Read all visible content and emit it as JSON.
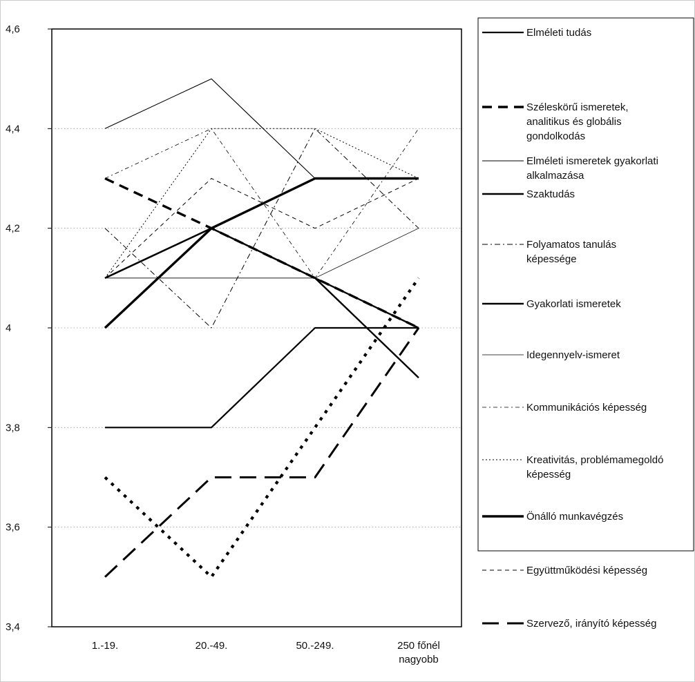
{
  "chart_data": {
    "type": "line",
    "categories": [
      "1.-19.",
      "20.-49.",
      "50.-249.",
      "250 főnél nagyobb"
    ],
    "category_label_lines": [
      [
        "1.-19."
      ],
      [
        "20.-49."
      ],
      [
        "50.-249."
      ],
      [
        "250 főnél",
        "nagyobb"
      ]
    ],
    "y_tick_labels": [
      "3,4",
      "3,6",
      "3,8",
      "4",
      "4,2",
      "4,4",
      "4,6"
    ],
    "ylim": [
      3.4,
      4.6
    ],
    "y_ticks": [
      3.4,
      3.6,
      3.8,
      4.0,
      4.2,
      4.4,
      4.6
    ],
    "grid": "horizontal dotted",
    "legend_position": "right",
    "title": "",
    "xlabel": "",
    "ylabel": "",
    "series": [
      {
        "name": "Elméleti tudás",
        "name_lines": [
          "Elméleti tudás"
        ],
        "values": [
          3.8,
          3.8,
          4.0,
          4.0
        ],
        "color": "#000000",
        "stroke": "solid-medium"
      },
      {
        "name": "Széleskörű ismeretek, analitikus és globális gondolkodás",
        "name_lines": [
          "Széleskörű ismeretek,",
          "analitikus és globális",
          "gondolkodás"
        ],
        "values": [
          4.3,
          4.2,
          4.1,
          4.0
        ],
        "color": "#000000",
        "stroke": "dash-thick"
      },
      {
        "name": "Elméleti ismeretek gyakorlati alkalmazása",
        "name_lines": [
          "Elméleti ismeretek gyakorlati",
          "alkalmazása"
        ],
        "values": [
          4.4,
          4.5,
          4.3,
          4.3
        ],
        "color": "#000000",
        "stroke": "solid-thin"
      },
      {
        "name": "Szaktudás",
        "name_lines": [
          "Szaktudás"
        ],
        "values": [
          4.1,
          4.2,
          4.1,
          3.9
        ],
        "color": "#000000",
        "stroke": "solid-semibold"
      },
      {
        "name": "Folyamatos tanulás képessége",
        "name_lines": [
          "Folyamatos tanulás",
          "képessége"
        ],
        "values": [
          4.2,
          4.0,
          4.4,
          4.2
        ],
        "color": "#000000",
        "stroke": "dashdot-thin"
      },
      {
        "name": "Gyakorlati ismeretek",
        "name_lines": [
          "Gyakorlati ismeretek"
        ],
        "values": [
          4.1,
          4.2,
          4.1,
          4.0
        ],
        "color": "#000000",
        "stroke": "solid-semibold"
      },
      {
        "name": "Idegennyelv-ismeret",
        "name_lines": [
          "Idegennyelv-ismeret"
        ],
        "values": [
          4.1,
          4.1,
          4.1,
          4.2
        ],
        "color": "#000000",
        "stroke": "solid-hair"
      },
      {
        "name": "Kommunikációs képesség",
        "name_lines": [
          "Kommunikációs képesség"
        ],
        "values": [
          4.3,
          4.4,
          4.1,
          4.4
        ],
        "color": "#000000",
        "stroke": "dashdot-hair"
      },
      {
        "name": "Kreativitás, problémamegoldó képesség",
        "name_lines": [
          "Kreativitás, problémamegoldó",
          "képesség"
        ],
        "values": [
          4.1,
          4.4,
          4.4,
          4.3
        ],
        "color": "#000000",
        "stroke": "dotted-thin"
      },
      {
        "name": "Önálló munkavégzés",
        "name_lines": [
          "Önálló munkavégzés"
        ],
        "values": [
          4.0,
          4.2,
          4.3,
          4.3
        ],
        "color": "#000000",
        "stroke": "solid-thick"
      },
      {
        "name": "Együttműködési képesség",
        "name_lines": [
          "Együttműködési képesség"
        ],
        "values": [
          4.1,
          4.3,
          4.2,
          4.3
        ],
        "color": "#000000",
        "stroke": "dash-thin"
      },
      {
        "name": "Szervező, irányító képesség",
        "name_lines": [
          "Szervező, irányító képesség"
        ],
        "values": [
          3.5,
          3.7,
          3.7,
          4.0
        ],
        "color": "#000000",
        "stroke": "longdash-thick"
      },
      {
        "name": "",
        "name_lines": [],
        "values": [
          3.7,
          3.5,
          3.8,
          4.1
        ],
        "color": "#000000",
        "stroke": "dotted-thick"
      }
    ]
  }
}
